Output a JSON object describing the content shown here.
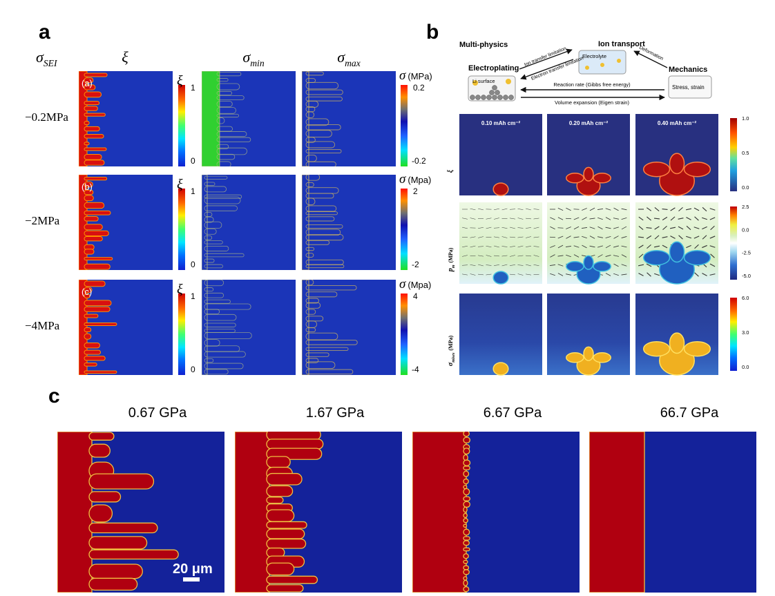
{
  "panel_a": {
    "label": "a",
    "row_header": {
      "symbol": "σ",
      "sub": "SEI"
    },
    "col_headers": [
      {
        "symbol": "ξ"
      },
      {
        "symbol": "σ",
        "sub": "min"
      },
      {
        "symbol": "σ",
        "sub": "max"
      }
    ],
    "rows": [
      {
        "value": "−0.2MPa",
        "tag": "(a)",
        "xi_bar": {
          "symbol": "ξ",
          "top": "1",
          "bottom": "0"
        },
        "sigma_bar": {
          "symbol": "σ",
          "unit": "(MPa)",
          "top": "0.2",
          "bottom": "-0.2"
        }
      },
      {
        "value": "−2MPa",
        "tag": "(b)",
        "xi_bar": {
          "symbol": "ξ",
          "top": "1",
          "bottom": "0"
        },
        "sigma_bar": {
          "symbol": "σ",
          "unit": "(Mpa)",
          "top": "2",
          "bottom": "-2"
        }
      },
      {
        "value": "−4MPa",
        "tag": "(c)",
        "xi_bar": {
          "symbol": "ξ",
          "top": "1",
          "bottom": "0"
        },
        "sigma_bar": {
          "symbol": "σ",
          "unit": "(Mpa)",
          "top": "4",
          "bottom": "-4"
        }
      }
    ]
  },
  "panel_b": {
    "label": "b",
    "diagram": {
      "title": "Multi-physics",
      "nodes": {
        "electroplating": "Electroplating",
        "ion_transport": "Ion transport",
        "mechanics": "Mechanics"
      },
      "boxes": {
        "li_surface": "Li surface",
        "electrolyte": "Electrolyte",
        "stress": "Stress, strain"
      },
      "arrows": {
        "ion_limit": "Ion transfer limitation",
        "electron_limit": "Electron transfer limitation",
        "deformation": "Deformation",
        "reaction": "Reaction rate (Gibbs free energy)",
        "volume": "Volume expansion (Eigen strain)"
      }
    },
    "columns": [
      "0.10 mAh cm⁻²",
      "0.20 mAh cm⁻²",
      "0.40 mAh cm⁻²"
    ],
    "rows": [
      {
        "symbol": "ξ",
        "ticks": [
          "1.0",
          "0.5",
          "0.0"
        ]
      },
      {
        "symbol": "p",
        "sub": "m",
        "unit": "(MPa)",
        "ticks": [
          "2.5",
          "0.0",
          "-2.5",
          "-5.0"
        ]
      },
      {
        "symbol": "σ",
        "sub": "mises",
        "unit": "(MPa)",
        "ticks": [
          "6.0",
          "3.0",
          "0.0"
        ]
      }
    ]
  },
  "panel_c": {
    "label": "c",
    "columns": [
      "0.67 GPa",
      "1.67 GPa",
      "6.67 GPa",
      "66.7 GPa"
    ],
    "scale_bar": "20 μm"
  }
}
